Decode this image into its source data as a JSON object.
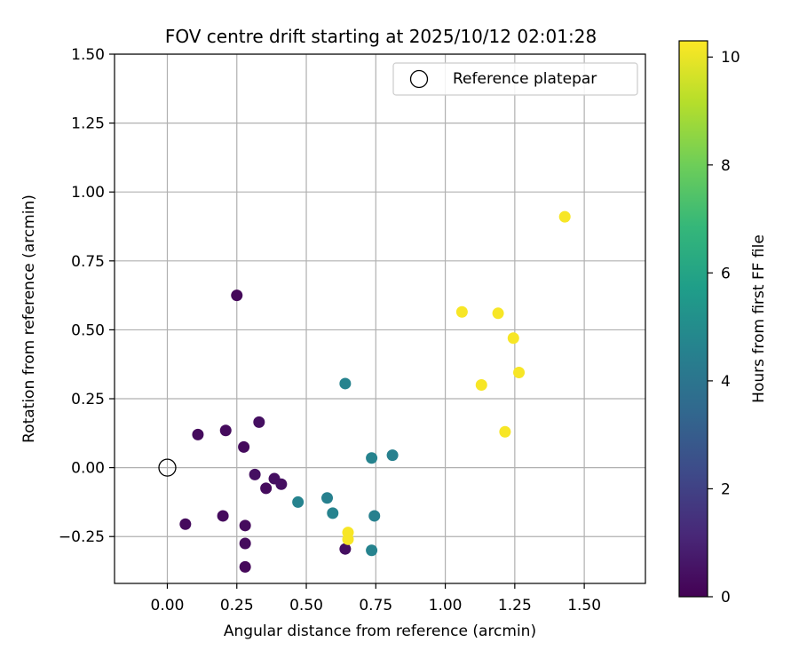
{
  "chart_data": {
    "type": "scatter",
    "title": "FOV centre drift starting at 2025/10/12 02:01:28",
    "xlabel": "Angular distance from reference (arcmin)",
    "ylabel": "Rotation from reference (arcmin)",
    "xlim": [
      -0.19,
      1.72
    ],
    "ylim": [
      -0.42,
      1.5
    ],
    "xticks": [
      0.0,
      0.25,
      0.5,
      0.75,
      1.0,
      1.25,
      1.5
    ],
    "xtick_labels": [
      "0.00",
      "0.25",
      "0.50",
      "0.75",
      "1.00",
      "1.25",
      "1.50"
    ],
    "yticks": [
      -0.25,
      0.0,
      0.25,
      0.5,
      0.75,
      1.0,
      1.25,
      1.5
    ],
    "ytick_labels": [
      "−0.25",
      "0.00",
      "0.25",
      "0.50",
      "0.75",
      "1.00",
      "1.25",
      "1.50"
    ],
    "grid": true,
    "legend": {
      "location": "top-right",
      "label": "Reference platepar"
    },
    "reference_point": {
      "x": 0.0,
      "y": 0.0
    },
    "colorbar": {
      "label": "Hours from first FF file",
      "min": 0,
      "max": 10.3,
      "ticks": [
        0,
        2,
        4,
        6,
        8,
        10
      ],
      "tick_labels": [
        "0",
        "2",
        "4",
        "6",
        "8",
        "10"
      ],
      "colormap": "viridis"
    },
    "points": [
      {
        "x": 0.25,
        "y": 0.625,
        "hours": 0.2
      },
      {
        "x": 0.11,
        "y": 0.12,
        "hours": 0.3
      },
      {
        "x": 0.21,
        "y": 0.135,
        "hours": 0.3
      },
      {
        "x": 0.33,
        "y": 0.165,
        "hours": 0.4
      },
      {
        "x": 0.275,
        "y": 0.075,
        "hours": 0.3
      },
      {
        "x": 0.315,
        "y": -0.025,
        "hours": 0.4
      },
      {
        "x": 0.385,
        "y": -0.04,
        "hours": 0.4
      },
      {
        "x": 0.355,
        "y": -0.075,
        "hours": 0.3
      },
      {
        "x": 0.41,
        "y": -0.06,
        "hours": 0.4
      },
      {
        "x": 0.065,
        "y": -0.205,
        "hours": 0.3
      },
      {
        "x": 0.2,
        "y": -0.175,
        "hours": 0.3
      },
      {
        "x": 0.28,
        "y": -0.21,
        "hours": 0.3
      },
      {
        "x": 0.28,
        "y": -0.275,
        "hours": 0.3
      },
      {
        "x": 0.28,
        "y": -0.36,
        "hours": 0.2
      },
      {
        "x": 0.64,
        "y": -0.295,
        "hours": 0.4
      },
      {
        "x": 0.64,
        "y": 0.305,
        "hours": 4.6
      },
      {
        "x": 0.735,
        "y": 0.035,
        "hours": 4.6
      },
      {
        "x": 0.81,
        "y": 0.045,
        "hours": 4.5
      },
      {
        "x": 0.47,
        "y": -0.125,
        "hours": 4.6
      },
      {
        "x": 0.575,
        "y": -0.11,
        "hours": 4.5
      },
      {
        "x": 0.595,
        "y": -0.165,
        "hours": 4.6
      },
      {
        "x": 0.745,
        "y": -0.175,
        "hours": 4.5
      },
      {
        "x": 0.735,
        "y": -0.3,
        "hours": 4.6
      },
      {
        "x": 1.06,
        "y": 0.565,
        "hours": 10.2
      },
      {
        "x": 1.19,
        "y": 0.56,
        "hours": 10.2
      },
      {
        "x": 1.245,
        "y": 0.47,
        "hours": 10.2
      },
      {
        "x": 1.265,
        "y": 0.345,
        "hours": 10.2
      },
      {
        "x": 1.13,
        "y": 0.3,
        "hours": 10.2
      },
      {
        "x": 1.215,
        "y": 0.13,
        "hours": 10.2
      },
      {
        "x": 1.43,
        "y": 0.91,
        "hours": 10.2
      },
      {
        "x": 0.65,
        "y": -0.235,
        "hours": 10.2
      },
      {
        "x": 0.65,
        "y": -0.26,
        "hours": 10.2
      }
    ]
  }
}
